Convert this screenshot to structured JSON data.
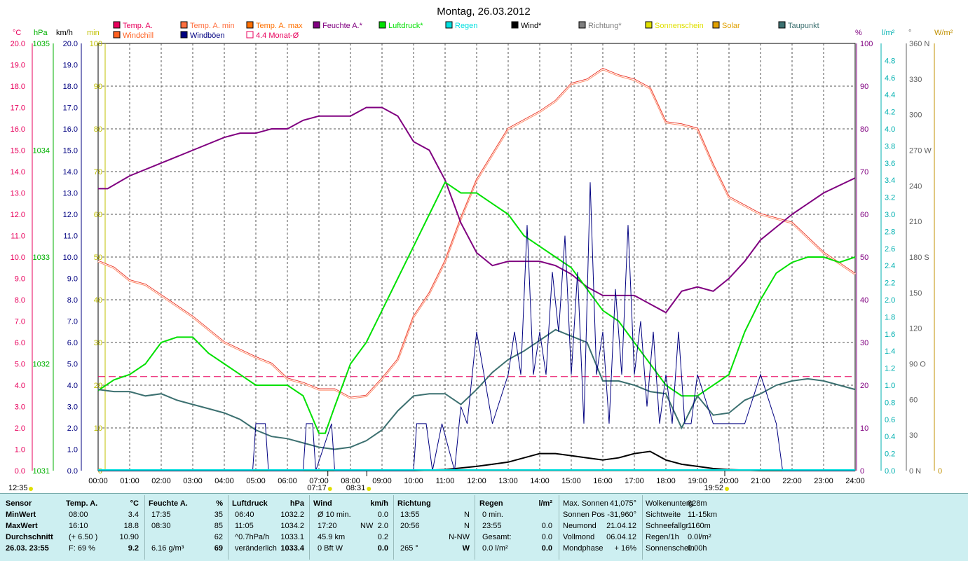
{
  "title": "Montag, 26.03.2012",
  "legend": [
    {
      "label": "Temp. A.",
      "color": "#e8005c"
    },
    {
      "label": "Temp. A. min",
      "color": "#ff7040"
    },
    {
      "label": "Temp. A. max",
      "color": "#ff7000"
    },
    {
      "label": "Feuchte A.*",
      "color": "#800080"
    },
    {
      "label": "Luftdruck*",
      "color": "#00e000"
    },
    {
      "label": "Regen",
      "color": "#00e0e0"
    },
    {
      "label": "Wind*",
      "color": "#000000"
    },
    {
      "label": "Richtung*",
      "color": "#808080"
    },
    {
      "label": "Sonnenschein",
      "color": "#e0e000"
    },
    {
      "label": "Solar",
      "color": "#e0a000"
    },
    {
      "label": "Taupunkt",
      "color": "#3c7070"
    },
    {
      "label": "Windchill",
      "color": "#ff6020"
    },
    {
      "label": "Windböen",
      "color": "#000080"
    },
    {
      "label": "4.4 Monat-Ø",
      "color": "#e8005c"
    }
  ],
  "axes": {
    "units": {
      "celsius": "°C",
      "hpa": "hPa",
      "kmh": "km/h",
      "min": "min",
      "percent": "%",
      "lm2": "l/m²",
      "deg": "°",
      "wm2": "W/m²"
    },
    "celsius_ticks": [
      "20.0",
      "19.0",
      "18.0",
      "17.0",
      "16.0",
      "15.0",
      "14.0",
      "13.0",
      "12.0",
      "11.0",
      "10.0",
      "9.0",
      "8.0",
      "7.0",
      "6.0",
      "5.0",
      "4.0",
      "3.0",
      "2.0",
      "1.0",
      "0.0"
    ],
    "hpa_ticks": [
      "1035",
      "1034",
      "1033",
      "1032",
      "1031"
    ],
    "kmh_ticks": [
      "20.0",
      "19.0",
      "18.0",
      "17.0",
      "16.0",
      "15.0",
      "14.0",
      "13.0",
      "12.0",
      "11.0",
      "10.0",
      "9.0",
      "8.0",
      "7.0",
      "6.0",
      "5.0",
      "4.0",
      "3.0",
      "2.0",
      "1.0",
      "0.0"
    ],
    "min_ticks": [
      "100",
      "90",
      "80",
      "70",
      "60",
      "50",
      "40",
      "30",
      "20",
      "10",
      "0"
    ],
    "percent_ticks": [
      "100",
      "90",
      "80",
      "70",
      "60",
      "50",
      "40",
      "30",
      "20",
      "10",
      "0"
    ],
    "lm2_ticks": [
      "4.8",
      "4.6",
      "4.4",
      "4.2",
      "4.0",
      "3.8",
      "3.6",
      "3.4",
      "3.2",
      "3.0",
      "2.8",
      "2.6",
      "2.4",
      "2.2",
      "2.0",
      "1.8",
      "1.6",
      "1.4",
      "1.2",
      "1.0",
      "0.8",
      "0.6",
      "0.4",
      "0.2",
      "0.0"
    ],
    "deg_ticks": [
      "360 N",
      "330",
      "300",
      "270 W",
      "240",
      "210",
      "180 S",
      "150",
      "120",
      "90  O",
      "60",
      "30",
      "0   N"
    ],
    "wm2_ticks": [
      "0"
    ],
    "time_ticks": [
      "00:00",
      "01:00",
      "02:00",
      "03:00",
      "04:00",
      "05:00",
      "06:00",
      "07:00",
      "08:00",
      "09:00",
      "10:00",
      "11:00",
      "12:00",
      "13:00",
      "14:00",
      "15:00",
      "16:00",
      "17:00",
      "18:00",
      "19:00",
      "20:00",
      "21:00",
      "22:00",
      "23:00",
      "24:00"
    ],
    "marks": {
      "left": "12:35",
      "sunrise": "07:17",
      "culmination": "08:31",
      "sunset": "19:52"
    }
  },
  "chart_data": {
    "type": "line",
    "title": "Montag, 26.03.2012",
    "x_unit": "hours",
    "xlim": [
      0,
      24
    ],
    "series": [
      {
        "name": "Temp. A.",
        "unit": "°C",
        "color": "#e83030",
        "x": [
          0,
          0.5,
          1,
          1.5,
          2,
          3,
          4,
          5,
          5.5,
          6,
          6.5,
          7,
          7.5,
          8,
          8.5,
          9,
          9.5,
          10,
          10.5,
          11,
          11.5,
          12,
          12.5,
          13,
          13.5,
          14,
          14.5,
          15,
          15.5,
          16,
          16.5,
          17,
          17.5,
          18,
          18.5,
          19,
          19.5,
          20,
          21,
          22,
          23,
          24
        ],
        "y": [
          9.8,
          9.5,
          8.9,
          8.7,
          8.2,
          7.2,
          6.0,
          5.3,
          5.0,
          4.3,
          4.1,
          3.8,
          3.8,
          3.4,
          3.5,
          4.3,
          5.2,
          7.2,
          8.3,
          9.8,
          11.8,
          13.6,
          14.8,
          16.0,
          16.4,
          16.8,
          17.3,
          18.1,
          18.3,
          18.8,
          18.5,
          18.3,
          17.9,
          16.3,
          16.2,
          16.0,
          14.3,
          12.8,
          12.0,
          11.6,
          10.2,
          9.2
        ]
      },
      {
        "name": "Feuchte A.*",
        "unit": "%",
        "color": "#800080",
        "x": [
          0,
          0.3,
          1,
          2,
          3,
          4,
          4.5,
          5,
          5.5,
          6,
          6.5,
          7,
          7.5,
          8,
          8.5,
          9,
          9.5,
          10,
          10.5,
          11,
          11.5,
          12,
          12.5,
          13,
          13.5,
          14,
          14.5,
          15,
          15.5,
          16,
          16.5,
          17,
          17.5,
          18,
          18.5,
          19,
          19.5,
          20,
          20.5,
          21,
          22,
          23,
          24
        ],
        "y": [
          66,
          66,
          69,
          72,
          75,
          78,
          79,
          79,
          80,
          80,
          82,
          83,
          83,
          83,
          85,
          85,
          83,
          77,
          75,
          68,
          58,
          51,
          48,
          49,
          49,
          49,
          48,
          46,
          43,
          41,
          41,
          41,
          39,
          37,
          42,
          43,
          42,
          45,
          49,
          54,
          60,
          65,
          68.5
        ]
      },
      {
        "name": "Luftdruck*",
        "unit": "hPa",
        "color": "#00e000",
        "x": [
          0,
          0.5,
          1,
          1.5,
          2,
          2.5,
          3,
          3.5,
          4,
          4.5,
          5,
          5.5,
          6,
          6.5,
          7,
          7.2,
          7.5,
          8,
          8.5,
          9,
          9.5,
          10,
          10.5,
          11,
          11.5,
          12,
          12.5,
          13,
          13.5,
          14,
          14.5,
          15,
          15.5,
          16,
          16.5,
          17,
          17.5,
          18,
          18.5,
          19,
          19.5,
          20,
          20.5,
          21,
          21.5,
          22,
          22.5,
          23,
          23.5,
          24
        ],
        "y": [
          1031.75,
          1031.85,
          1031.9,
          1032.0,
          1032.2,
          1032.25,
          1032.25,
          1032.1,
          1032.0,
          1031.9,
          1031.8,
          1031.8,
          1031.8,
          1031.7,
          1031.35,
          1031.35,
          1031.6,
          1032.0,
          1032.2,
          1032.5,
          1032.8,
          1033.1,
          1033.4,
          1033.7,
          1033.6,
          1033.6,
          1033.5,
          1033.4,
          1033.2,
          1033.1,
          1033.0,
          1032.9,
          1032.7,
          1032.5,
          1032.4,
          1032.2,
          1032.0,
          1031.8,
          1031.7,
          1031.7,
          1031.8,
          1031.9,
          1032.3,
          1032.6,
          1032.85,
          1032.95,
          1033.0,
          1033.0,
          1032.95,
          1033.0
        ]
      },
      {
        "name": "Taupunkt",
        "unit": "°C",
        "color": "#3c7070",
        "x": [
          0,
          0.5,
          1,
          1.5,
          2,
          2.5,
          3,
          3.5,
          4,
          4.5,
          5,
          5.5,
          6,
          6.5,
          7,
          7.5,
          8,
          8.5,
          9,
          9.5,
          10,
          10.5,
          11,
          11.5,
          12,
          12.5,
          13,
          13.5,
          14,
          14.5,
          15,
          15.5,
          16,
          16.5,
          17,
          17.5,
          18,
          18.5,
          19,
          19.5,
          20,
          20.5,
          21,
          21.5,
          22,
          22.5,
          23,
          23.5,
          24
        ],
        "y": [
          3.8,
          3.7,
          3.7,
          3.5,
          3.6,
          3.3,
          3.1,
          2.9,
          2.7,
          2.4,
          1.9,
          1.6,
          1.5,
          1.3,
          1.1,
          1.0,
          1.1,
          1.4,
          1.9,
          2.8,
          3.5,
          3.6,
          3.6,
          3.1,
          3.8,
          4.6,
          5.2,
          5.6,
          6.1,
          6.6,
          6.3,
          6.0,
          4.2,
          4.2,
          4.0,
          3.7,
          3.6,
          2.0,
          3.5,
          2.6,
          2.7,
          3.3,
          3.6,
          4.0,
          4.2,
          4.3,
          4.2,
          4.0,
          3.8
        ]
      },
      {
        "name": "Wind*",
        "unit": "km/h",
        "color": "#000000",
        "x": [
          0,
          10,
          11,
          12,
          12.5,
          13,
          13.5,
          14,
          14.5,
          15,
          15.5,
          16,
          16.5,
          17,
          17.5,
          18,
          18.5,
          19,
          19.5,
          20,
          21,
          22,
          24
        ],
        "y": [
          0,
          0,
          0.05,
          0.2,
          0.3,
          0.4,
          0.6,
          0.8,
          0.8,
          0.7,
          0.6,
          0.5,
          0.6,
          0.8,
          0.9,
          0.5,
          0.3,
          0.2,
          0.1,
          0.05,
          0,
          0,
          0
        ]
      },
      {
        "name": "Windböen",
        "unit": "km/h",
        "color": "#000080",
        "x": [
          0,
          4.9,
          5.0,
          5.3,
          5.4,
          6.5,
          6.6,
          6.8,
          6.9,
          7.4,
          7.5,
          7.6,
          10.0,
          10.1,
          10.4,
          10.6,
          10.9,
          11.3,
          11.5,
          11.7,
          12.0,
          12.5,
          13.0,
          13.2,
          13.4,
          13.6,
          13.8,
          14.0,
          14.2,
          14.4,
          14.6,
          14.8,
          15.0,
          15.2,
          15.4,
          15.6,
          15.8,
          16.0,
          16.2,
          16.4,
          16.6,
          16.8,
          17.0,
          17.2,
          17.4,
          17.6,
          17.8,
          18.0,
          18.2,
          18.4,
          18.6,
          18.8,
          19.0,
          19.5,
          20.0,
          20.5,
          21.0,
          21.5,
          21.7,
          22.0,
          24.0
        ],
        "y": [
          0,
          0,
          2.2,
          2.2,
          0,
          0,
          2.2,
          2.2,
          0,
          2.2,
          0,
          0,
          0,
          2.2,
          2.2,
          0,
          2.2,
          0,
          3.0,
          2.2,
          6.5,
          2.2,
          4.5,
          6.5,
          4.5,
          11.5,
          4.5,
          6.5,
          4.5,
          9.3,
          6.5,
          11.0,
          4.5,
          9.3,
          2.2,
          13.5,
          4.5,
          6.5,
          2.2,
          8.5,
          4.5,
          11.5,
          4.5,
          7.0,
          3.0,
          6.5,
          2.2,
          4.5,
          2.2,
          6.5,
          2.2,
          2.2,
          4.5,
          2.2,
          2.2,
          2.2,
          4.5,
          2.2,
          0,
          0,
          0
        ]
      }
    ],
    "reference_lines": [
      {
        "name": "4.4 Monat-Ø",
        "unit": "°C",
        "y": 4.4
      }
    ]
  },
  "summary": {
    "sensor": {
      "header": "Sensor",
      "rows": [
        "MinWert",
        "MaxWert",
        "Durchschnitt",
        "26.03. 23:55"
      ]
    },
    "temp": {
      "header": "Temp. A.",
      "unit": "°C",
      "rows": [
        [
          "08:00",
          "3.4"
        ],
        [
          "16:10",
          "18.8"
        ],
        [
          "(+ 6.50 )",
          "10.90"
        ],
        [
          "F: 69 %",
          "9.2"
        ]
      ]
    },
    "feuchte": {
      "header": "Feuchte A.",
      "unit": "%",
      "rows": [
        [
          "17:35",
          "35"
        ],
        [
          "08:30",
          "85"
        ],
        [
          "",
          "62"
        ],
        [
          "6.16 g/m³",
          "69"
        ]
      ]
    },
    "luftdruck": {
      "header": "Luftdruck",
      "unit": "hPa",
      "rows": [
        [
          "06:40",
          "1032.2"
        ],
        [
          "11:05",
          "1034.2"
        ],
        [
          "^0.7hPa/h",
          "1033.1"
        ],
        [
          "veränderlich",
          "1033.4"
        ]
      ]
    },
    "wind": {
      "header": "Wind",
      "unit": "km/h",
      "rows": [
        [
          "Ø 10 min.",
          "",
          "0.0"
        ],
        [
          "17:20",
          "NW",
          "2.0"
        ],
        [
          "45.9 km",
          "",
          "0.2"
        ],
        [
          "0 Bft W",
          "",
          "0.0"
        ]
      ]
    },
    "richtung": {
      "header": "Richtung",
      "rows": [
        [
          "13:55",
          "N"
        ],
        [
          "20:56",
          "N"
        ],
        [
          "",
          "N-NW"
        ],
        [
          "265 °",
          "W"
        ]
      ]
    },
    "regen": {
      "header": "Regen",
      "unit": "l/m²",
      "rows": [
        [
          "0 min.",
          ""
        ],
        [
          "23:55",
          "0.0"
        ],
        [
          "Gesamt:",
          "0.0"
        ],
        [
          "0.0 l/m²",
          "0.0"
        ]
      ]
    },
    "astro": [
      [
        "Max. Sonnen",
        "41,075°"
      ],
      [
        "Sonnen Pos",
        "-31,960°"
      ],
      [
        "Neumond",
        "21.04.12"
      ],
      [
        "Vollmond",
        "06.04.12"
      ],
      [
        "Mondphase",
        "+ 16%"
      ]
    ],
    "cloud": [
      [
        "Wolkenunterg",
        "828m"
      ],
      [
        "Sichtweite",
        "11-15km"
      ],
      [
        "Schneefallgr",
        "1160m"
      ],
      [
        "Regen/1h",
        "0.0l/m²"
      ],
      [
        "Sonnenschein",
        "0.00h"
      ]
    ]
  }
}
